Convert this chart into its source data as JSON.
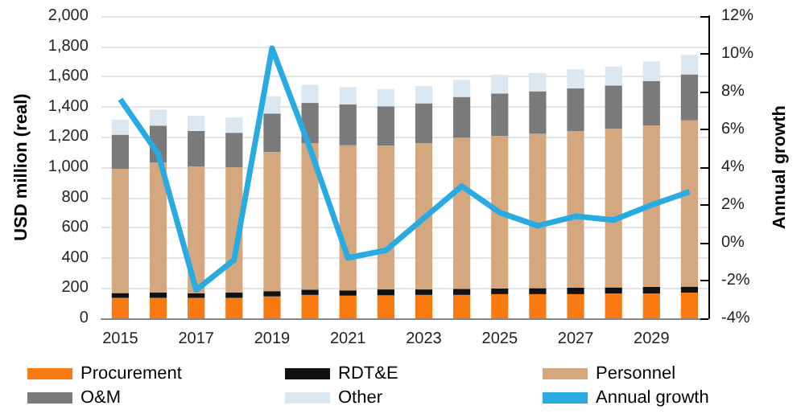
{
  "chart_data": {
    "type": "bar",
    "stacked": true,
    "ylabel": "USD million (real)",
    "y2label": "Annual growth",
    "categories": [
      "2015",
      null,
      "2017",
      null,
      "2019",
      null,
      "2021",
      null,
      "2023",
      null,
      "2025",
      null,
      "2027",
      null,
      "2029",
      null
    ],
    "series": [
      {
        "name": "Procurement",
        "color": "#f97a10",
        "values": [
          135,
          135,
          135,
          135,
          145,
          155,
          150,
          152,
          155,
          155,
          160,
          160,
          160,
          165,
          165,
          170
        ]
      },
      {
        "name": "RDT&E",
        "color": "#111111",
        "values": [
          33,
          35,
          30,
          35,
          35,
          35,
          35,
          39,
          36,
          40,
          38,
          40,
          42,
          40,
          43,
          40
        ]
      },
      {
        "name": "Personnel",
        "color": "#d4a77f",
        "values": [
          822,
          860,
          840,
          830,
          920,
          970,
          960,
          951,
          967,
          1000,
          1010,
          1021,
          1036,
          1049,
          1069,
          1100
        ]
      },
      {
        "name": "O&M",
        "color": "#7a7a7a",
        "values": [
          225,
          245,
          235,
          228,
          255,
          265,
          270,
          261,
          265,
          270,
          280,
          281,
          283,
          287,
          294,
          304
        ]
      },
      {
        "name": "Other",
        "color": "#dbe7f1",
        "values": [
          100,
          105,
          100,
          102,
          115,
          120,
          115,
          115,
          115,
          113,
          123,
          122,
          126,
          126,
          129,
          129
        ]
      },
      {
        "name": "Annual growth",
        "type": "line",
        "axis": "y2",
        "color": "#29abe2",
        "values": [
          7.6,
          4.7,
          -2.5,
          -0.9,
          10.3,
          5.0,
          -0.8,
          -0.4,
          1.3,
          3.0,
          1.6,
          0.9,
          1.4,
          1.2,
          2.0,
          2.7
        ]
      }
    ],
    "ylim": [
      0,
      2000
    ],
    "yticks": [
      0,
      {
        "value": 200,
        "label": "200"
      },
      {
        "value": 400,
        "label": "400"
      },
      {
        "value": 600,
        "label": "600"
      },
      {
        "value": 800,
        "label": "800"
      },
      {
        "value": 1000,
        "label": "1,000"
      },
      {
        "value": 1200,
        "label": "1,200"
      },
      {
        "value": 1400,
        "label": "1,400"
      },
      {
        "value": 1600,
        "label": "1,600"
      },
      {
        "value": 1800,
        "label": "1,800"
      },
      {
        "value": 2000,
        "label": "2,000"
      }
    ],
    "y2lim": [
      -4,
      12
    ],
    "y2ticks": [
      {
        "value": -4,
        "label": "-4%"
      },
      {
        "value": -2,
        "label": "-2%"
      },
      {
        "value": 0,
        "label": "0%"
      },
      {
        "value": 2,
        "label": "2%"
      },
      {
        "value": 4,
        "label": "4%"
      },
      {
        "value": 6,
        "label": "6%"
      },
      {
        "value": 8,
        "label": "8%"
      },
      {
        "value": 10,
        "label": "10%"
      },
      {
        "value": 12,
        "label": "12%"
      }
    ],
    "grid": "y",
    "legend": "bottom"
  }
}
